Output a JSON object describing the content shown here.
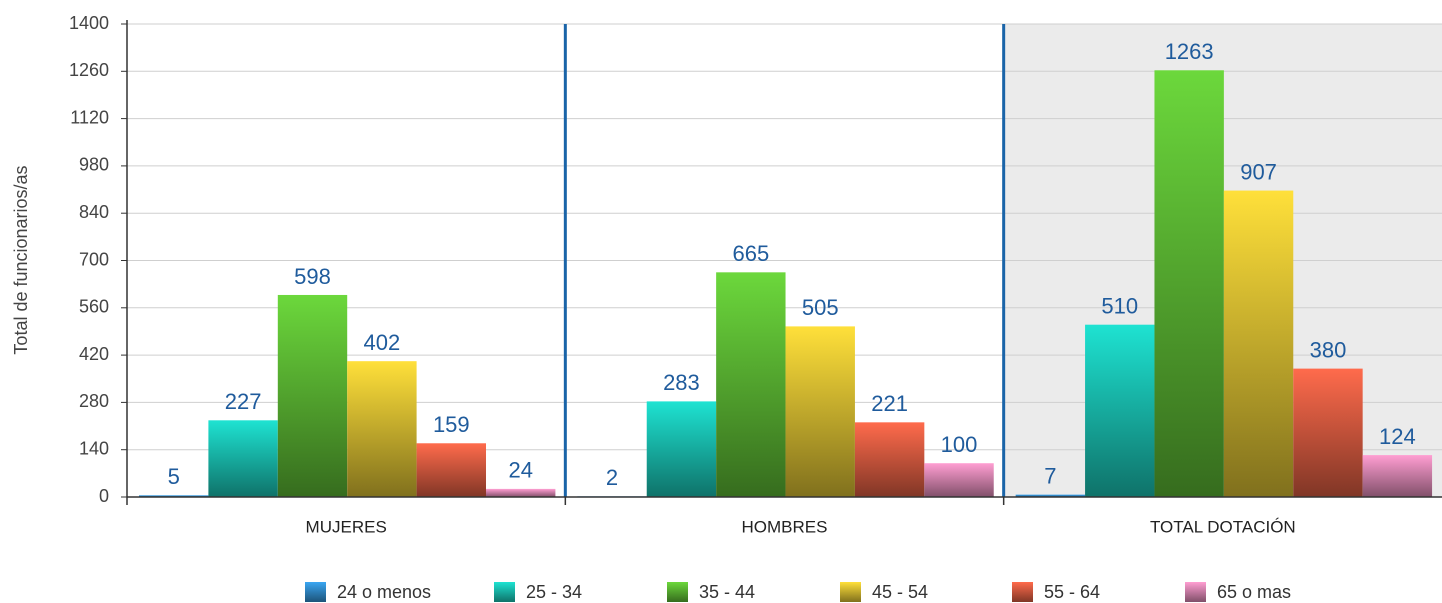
{
  "chart_data": {
    "type": "bar",
    "y_label": "Total de funcionarios/as",
    "categories": [
      "MUJERES",
      "HOMBRES",
      "TOTAL DOTACIÓN"
    ],
    "series": [
      {
        "name": "24 o menos",
        "color": "#3aa6f2",
        "values": [
          5,
          2,
          7
        ]
      },
      {
        "name": "25 - 34",
        "color": "#1ee3d2",
        "values": [
          227,
          283,
          510
        ]
      },
      {
        "name": "35 - 44",
        "color": "#6cd83c",
        "values": [
          598,
          665,
          1263
        ]
      },
      {
        "name": "45 - 54",
        "color": "#ffe03a",
        "values": [
          402,
          505,
          907
        ]
      },
      {
        "name": "55 - 64",
        "color": "#ff6b4c",
        "values": [
          159,
          221,
          380
        ]
      },
      {
        "name": "65 o mas",
        "color": "#ff9ed2",
        "values": [
          24,
          100,
          124
        ]
      }
    ],
    "ylim": [
      0,
      1400
    ],
    "yticks": [
      0,
      140,
      280,
      420,
      560,
      700,
      840,
      980,
      1120,
      1260,
      1400
    ],
    "grid": true
  }
}
